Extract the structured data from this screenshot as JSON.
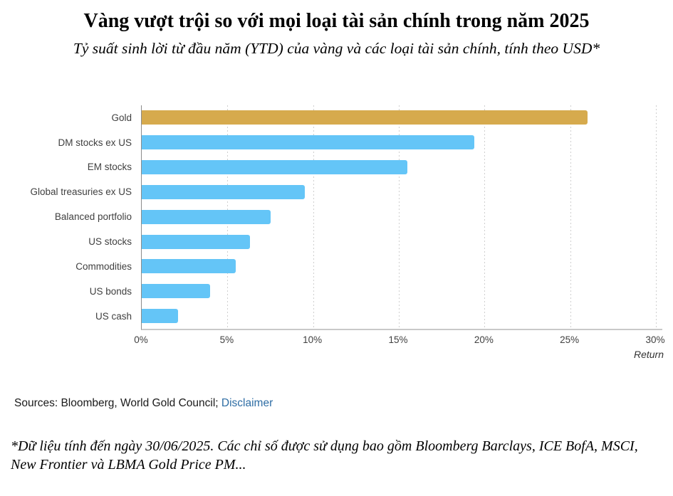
{
  "header": {
    "title": "Vàng vượt trội so với mọi loại tài sản chính trong năm 2025",
    "subtitle": "Tỷ suất sinh lời từ đầu năm (YTD) của vàng và các loại tài sản chính, tính theo USD*"
  },
  "chart_data": {
    "type": "bar",
    "orientation": "horizontal",
    "title": "Vàng vượt trội so với mọi loại tài sản chính trong năm 2025",
    "subtitle": "Tỷ suất sinh lời từ đầu năm (YTD) của vàng và các loại tài sản chính, tính theo USD*",
    "categories": [
      "Gold",
      "DM stocks ex US",
      "EM stocks",
      "Global treasuries ex US",
      "Balanced portfolio",
      "US stocks",
      "Commodities",
      "US bonds",
      "US cash"
    ],
    "values": [
      26.0,
      19.4,
      15.5,
      9.5,
      7.5,
      6.3,
      5.5,
      4.0,
      2.1
    ],
    "unit": "%",
    "xlabel": "Return",
    "ylabel": "",
    "xlim": [
      0,
      30
    ],
    "x_ticks": [
      "0%",
      "5%",
      "10%",
      "15%",
      "20%",
      "25%",
      "30%"
    ],
    "x_tick_values": [
      0,
      5,
      10,
      15,
      20,
      25,
      30
    ],
    "grid": "vertical-dotted",
    "legend": "none",
    "colors": {
      "highlight_category": "Gold",
      "highlight_bar": "#d6aa4d",
      "default_bar": "#64c5f7"
    }
  },
  "footer": {
    "sources_prefix": "Sources: Bloomberg, World Gold Council; ",
    "disclaimer_label": "Disclaimer",
    "footnote": "*Dữ liệu tính đến ngày 30/06/2025. Các chỉ số được sử dụng bao gồm Bloomberg Barclays, ICE BofA, MSCI, New Frontier và LBMA Gold Price PM..."
  }
}
